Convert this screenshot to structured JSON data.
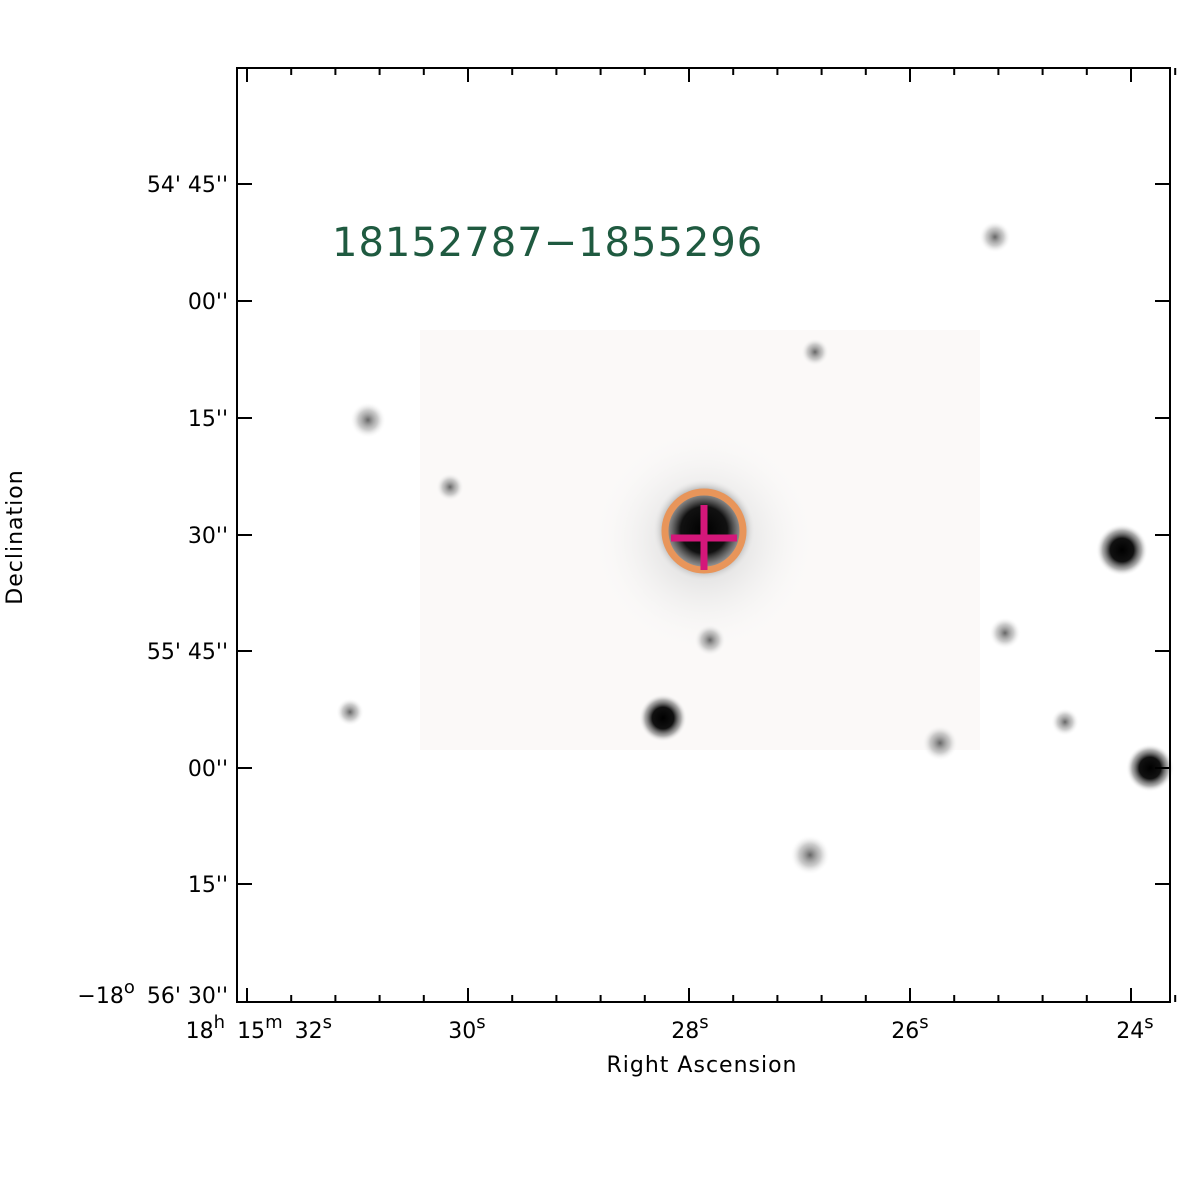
{
  "title": "18152787−1855296",
  "x_axis": {
    "label": "Right Ascension",
    "ticks": [
      [
        {
          "text": "18",
          "sup": "h"
        },
        {
          "text": "15",
          "sup": "m"
        },
        {
          "text": "32",
          "sup": "s"
        }
      ],
      [
        {
          "text": "30",
          "sup": "s"
        }
      ],
      [
        {
          "text": "28",
          "sup": "s"
        }
      ],
      [
        {
          "text": "26",
          "sup": "s"
        }
      ],
      [
        {
          "text": "24",
          "sup": "s"
        }
      ]
    ]
  },
  "y_axis": {
    "label": "Declination",
    "ticks": [
      [
        {
          "text": "54' 45''"
        }
      ],
      [
        {
          "text": "00''"
        }
      ],
      [
        {
          "text": "15''"
        }
      ],
      [
        {
          "text": "30''"
        }
      ],
      [
        {
          "text": "55' 45''"
        }
      ],
      [
        {
          "text": "00''"
        }
      ],
      [
        {
          "text": "15''"
        }
      ],
      [
        {
          "text": "−18",
          "sup": "o"
        },
        {
          "text": "56' 30''"
        }
      ]
    ]
  }
}
